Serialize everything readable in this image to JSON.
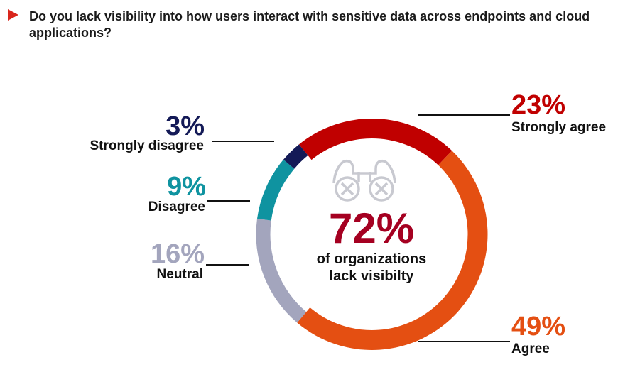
{
  "title": "Do you lack visibility into how users interact with sensitive data across endpoints and cloud applications?",
  "center": {
    "value": "72%",
    "line1": "of organizations",
    "line2": "lack visibilty",
    "icon": "binoculars-crossed-icon"
  },
  "chart_data": {
    "type": "pie",
    "donut": true,
    "title": "Do you lack visibility into how users interact with sensitive data across endpoints and cloud applications?",
    "slices": [
      {
        "label": "Strongly agree",
        "value": 23,
        "display": "23%",
        "color": "#c00000"
      },
      {
        "label": "Agree",
        "value": 49,
        "display": "49%",
        "color": "#e44f12"
      },
      {
        "label": "Neutral",
        "value": 16,
        "display": "16%",
        "color": "#a3a5bd"
      },
      {
        "label": "Disagree",
        "value": 9,
        "display": "9%",
        "color": "#0f93a0"
      },
      {
        "label": "Strongly disagree",
        "value": 3,
        "display": "3%",
        "color": "#141a57"
      }
    ]
  }
}
